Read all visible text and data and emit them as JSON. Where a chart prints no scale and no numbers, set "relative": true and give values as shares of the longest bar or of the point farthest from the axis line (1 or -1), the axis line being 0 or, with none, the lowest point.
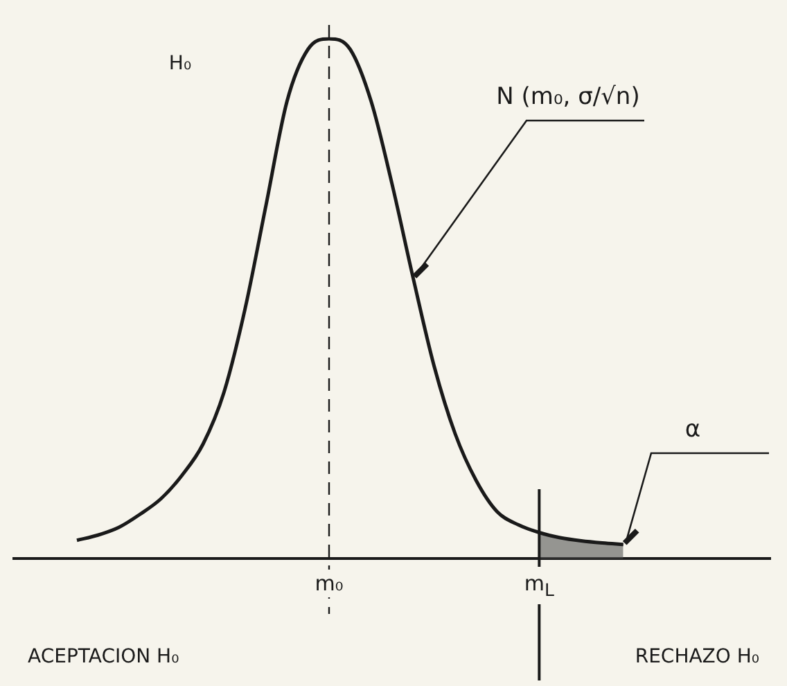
{
  "chart_data": {
    "type": "line",
    "relative": true,
    "legend": false,
    "grid": false,
    "marker": "none",
    "categories": [
      null,
      null,
      null,
      null,
      null,
      null,
      null,
      null,
      null,
      null,
      null,
      null,
      null,
      null,
      null,
      "m₀",
      null,
      null,
      null,
      null,
      null,
      null,
      null,
      null,
      null,
      "m$_{L}$",
      null,
      null,
      null,
      null,
      null,
      null,
      null,
      null,
      null,
      null,
      null
    ],
    "series": [
      {
        "name": "N (m₀, σ/√n)",
        "color": "#1a1a1a",
        "values": [
          null,
          null,
          null,
          0.035,
          0.045,
          0.06,
          0.085,
          0.115,
          0.16,
          0.22,
          0.32,
          0.48,
          0.68,
          0.88,
          0.98,
          1,
          0.98,
          0.88,
          0.72,
          0.54,
          0.37,
          0.24,
          0.15,
          0.09,
          0.065,
          0.05,
          0.04,
          0.034,
          0.03,
          0.027,
          null,
          null,
          null,
          null,
          null,
          null,
          null
        ]
      },
      {
        "name": "α",
        "type": "area",
        "color": "#555555",
        "values": [
          null,
          null,
          null,
          null,
          null,
          null,
          null,
          null,
          null,
          null,
          null,
          null,
          null,
          null,
          null,
          null,
          null,
          null,
          null,
          null,
          null,
          null,
          null,
          null,
          null,
          0.05,
          0.04,
          0.034,
          0.03,
          0.027,
          null,
          null,
          null,
          null,
          null,
          null,
          null
        ]
      }
    ],
    "ref_lines": [
      {
        "axis": "x",
        "value": "m₀",
        "line_style": "dashed"
      },
      {
        "axis": "x",
        "value": "m$_{L}$",
        "line_style": "solid"
      }
    ],
    "annotations": [
      "H₀",
      "ACEPTACION H₀",
      "RECHAZO H₀"
    ]
  }
}
